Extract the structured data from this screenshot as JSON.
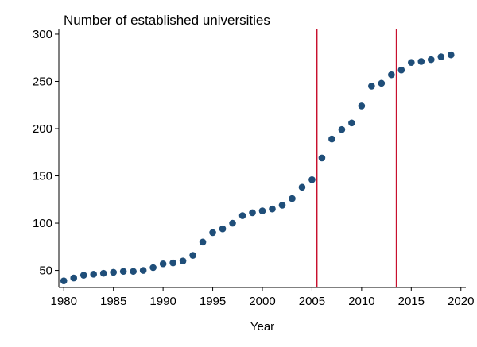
{
  "chart_data": {
    "type": "scatter",
    "title": "Number of established universities",
    "xlabel": "Year",
    "ylabel": "",
    "xlim": [
      1979.5,
      2020.5
    ],
    "ylim": [
      32,
      305
    ],
    "xticks": [
      1980,
      1985,
      1990,
      1995,
      2000,
      2005,
      2010,
      2015,
      2020
    ],
    "yticks": [
      50,
      100,
      150,
      200,
      250,
      300
    ],
    "grid": false,
    "series": [
      {
        "name": "Established universities",
        "x": [
          1980,
          1981,
          1982,
          1983,
          1984,
          1985,
          1986,
          1987,
          1988,
          1989,
          1990,
          1991,
          1992,
          1993,
          1994,
          1995,
          1996,
          1997,
          1998,
          1999,
          2000,
          2001,
          2002,
          2003,
          2004,
          2005,
          2006,
          2007,
          2008,
          2009,
          2010,
          2011,
          2012,
          2013,
          2014,
          2015,
          2016,
          2017,
          2018,
          2019
        ],
        "y": [
          39,
          42,
          45,
          46,
          47,
          48,
          49,
          49,
          50,
          53,
          57,
          58,
          60,
          66,
          80,
          90,
          94,
          100,
          108,
          111,
          113,
          115,
          119,
          126,
          138,
          146,
          169,
          189,
          199,
          206,
          224,
          245,
          248,
          257,
          262,
          270,
          271,
          273,
          276,
          278
        ]
      }
    ],
    "vlines": [
      2005.5,
      2013.5
    ],
    "colors": {
      "marker": "#1f4e79",
      "vline": "#c8102e",
      "axis": "#000000"
    }
  }
}
